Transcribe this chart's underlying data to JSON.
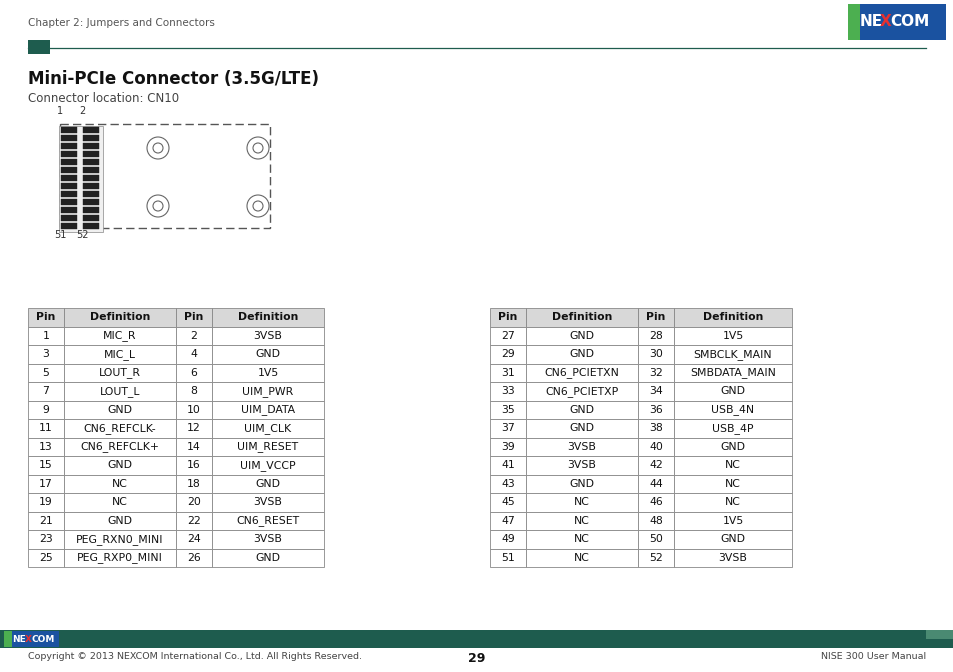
{
  "title": "Mini-PCIe Connector (3.5G/LTE)",
  "subtitle": "Connector location: CN10",
  "header_text": "Chapter 2: Jumpers and Connectors",
  "page_number": "29",
  "footer_right": "NISE 300 User Manual",
  "footer_left": "Copyright © 2013 NEXCOM International Co., Ltd. All Rights Reserved.",
  "green_dark": "#1e5c4e",
  "nexcom_blue": "#1a52a0",
  "nexcom_green_stripe": "#4caf50",
  "left_table": [
    [
      "Pin",
      "Definition",
      "Pin",
      "Definition"
    ],
    [
      "1",
      "MIC_R",
      "2",
      "3VSB"
    ],
    [
      "3",
      "MIC_L",
      "4",
      "GND"
    ],
    [
      "5",
      "LOUT_R",
      "6",
      "1V5"
    ],
    [
      "7",
      "LOUT_L",
      "8",
      "UIM_PWR"
    ],
    [
      "9",
      "GND",
      "10",
      "UIM_DATA"
    ],
    [
      "11",
      "CN6_REFCLK-",
      "12",
      "UIM_CLK"
    ],
    [
      "13",
      "CN6_REFCLK+",
      "14",
      "UIM_RESET"
    ],
    [
      "15",
      "GND",
      "16",
      "UIM_VCCP"
    ],
    [
      "17",
      "NC",
      "18",
      "GND"
    ],
    [
      "19",
      "NC",
      "20",
      "3VSB"
    ],
    [
      "21",
      "GND",
      "22",
      "CN6_RESET"
    ],
    [
      "23",
      "PEG_RXN0_MINI",
      "24",
      "3VSB"
    ],
    [
      "25",
      "PEG_RXP0_MINI",
      "26",
      "GND"
    ]
  ],
  "right_table": [
    [
      "Pin",
      "Definition",
      "Pin",
      "Definition"
    ],
    [
      "27",
      "GND",
      "28",
      "1V5"
    ],
    [
      "29",
      "GND",
      "30",
      "SMBCLK_MAIN"
    ],
    [
      "31",
      "CN6_PCIETXN",
      "32",
      "SMBDATA_MAIN"
    ],
    [
      "33",
      "CN6_PCIETXP",
      "34",
      "GND"
    ],
    [
      "35",
      "GND",
      "36",
      "USB_4N"
    ],
    [
      "37",
      "GND",
      "38",
      "USB_4P"
    ],
    [
      "39",
      "3VSB",
      "40",
      "GND"
    ],
    [
      "41",
      "3VSB",
      "42",
      "NC"
    ],
    [
      "43",
      "GND",
      "44",
      "NC"
    ],
    [
      "45",
      "NC",
      "46",
      "NC"
    ],
    [
      "47",
      "NC",
      "48",
      "1V5"
    ],
    [
      "49",
      "NC",
      "50",
      "GND"
    ],
    [
      "51",
      "NC",
      "52",
      "3VSB"
    ]
  ]
}
